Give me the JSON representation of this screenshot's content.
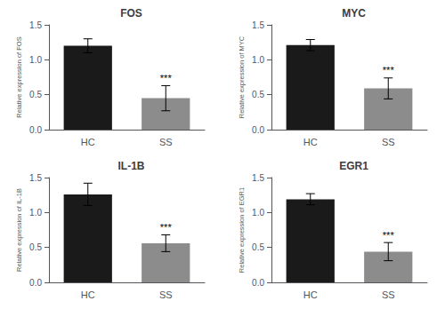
{
  "chart_data": [
    {
      "type": "bar",
      "title": "FOS",
      "ylabel": "Relative expression of FOS",
      "categories": [
        "HC",
        "SS"
      ],
      "values": [
        1.2,
        0.45
      ],
      "errors": [
        0.1,
        0.18
      ],
      "colors": [
        "#1a1a1a",
        "#8c8c8c"
      ],
      "ylim": [
        0,
        1.5
      ],
      "yticks": [
        {
          "value": 0,
          "label": "0.0"
        },
        0.5,
        {
          "value": 1,
          "label": "1.0"
        },
        1.5
      ],
      "annotations": [
        {
          "text": "***",
          "x": "SS"
        }
      ],
      "grid": false
    },
    {
      "type": "bar",
      "title": "MYC",
      "ylabel": "Relative expression of MYC",
      "categories": [
        "HC",
        "SS"
      ],
      "values": [
        1.21,
        0.59
      ],
      "errors": [
        0.08,
        0.15
      ],
      "colors": [
        "#1a1a1a",
        "#8c8c8c"
      ],
      "ylim": [
        0,
        1.5
      ],
      "yticks": [
        {
          "value": 0,
          "label": "0.0"
        },
        0.5,
        {
          "value": 1,
          "label": "1.0"
        },
        1.5
      ],
      "annotations": [
        {
          "text": "***",
          "x": "SS"
        }
      ],
      "grid": false
    },
    {
      "type": "bar",
      "title": "IL-1B",
      "ylabel": "Relative expression of IL-1B",
      "categories": [
        "HC",
        "SS"
      ],
      "values": [
        1.26,
        0.56
      ],
      "errors": [
        0.16,
        0.12
      ],
      "colors": [
        "#1a1a1a",
        "#8c8c8c"
      ],
      "ylim": [
        0,
        1.5
      ],
      "yticks": [
        {
          "value": 0,
          "label": "0.0"
        },
        0.5,
        {
          "value": 1,
          "label": "1.0"
        },
        1.5
      ],
      "annotations": [
        {
          "text": "***",
          "x": "SS"
        }
      ],
      "grid": false
    },
    {
      "type": "bar",
      "title": "EGR1",
      "ylabel": "Relative expression of EGR1",
      "categories": [
        "HC",
        "SS"
      ],
      "values": [
        1.19,
        0.44
      ],
      "errors": [
        0.08,
        0.13
      ],
      "colors": [
        "#1a1a1a",
        "#8c8c8c"
      ],
      "ylim": [
        0,
        1.5
      ],
      "yticks": [
        {
          "value": 0,
          "label": "0.0"
        },
        0.5,
        {
          "value": 1,
          "label": "1.0"
        },
        1.5
      ],
      "annotations": [
        {
          "text": "***",
          "x": "SS"
        }
      ],
      "grid": false
    }
  ]
}
